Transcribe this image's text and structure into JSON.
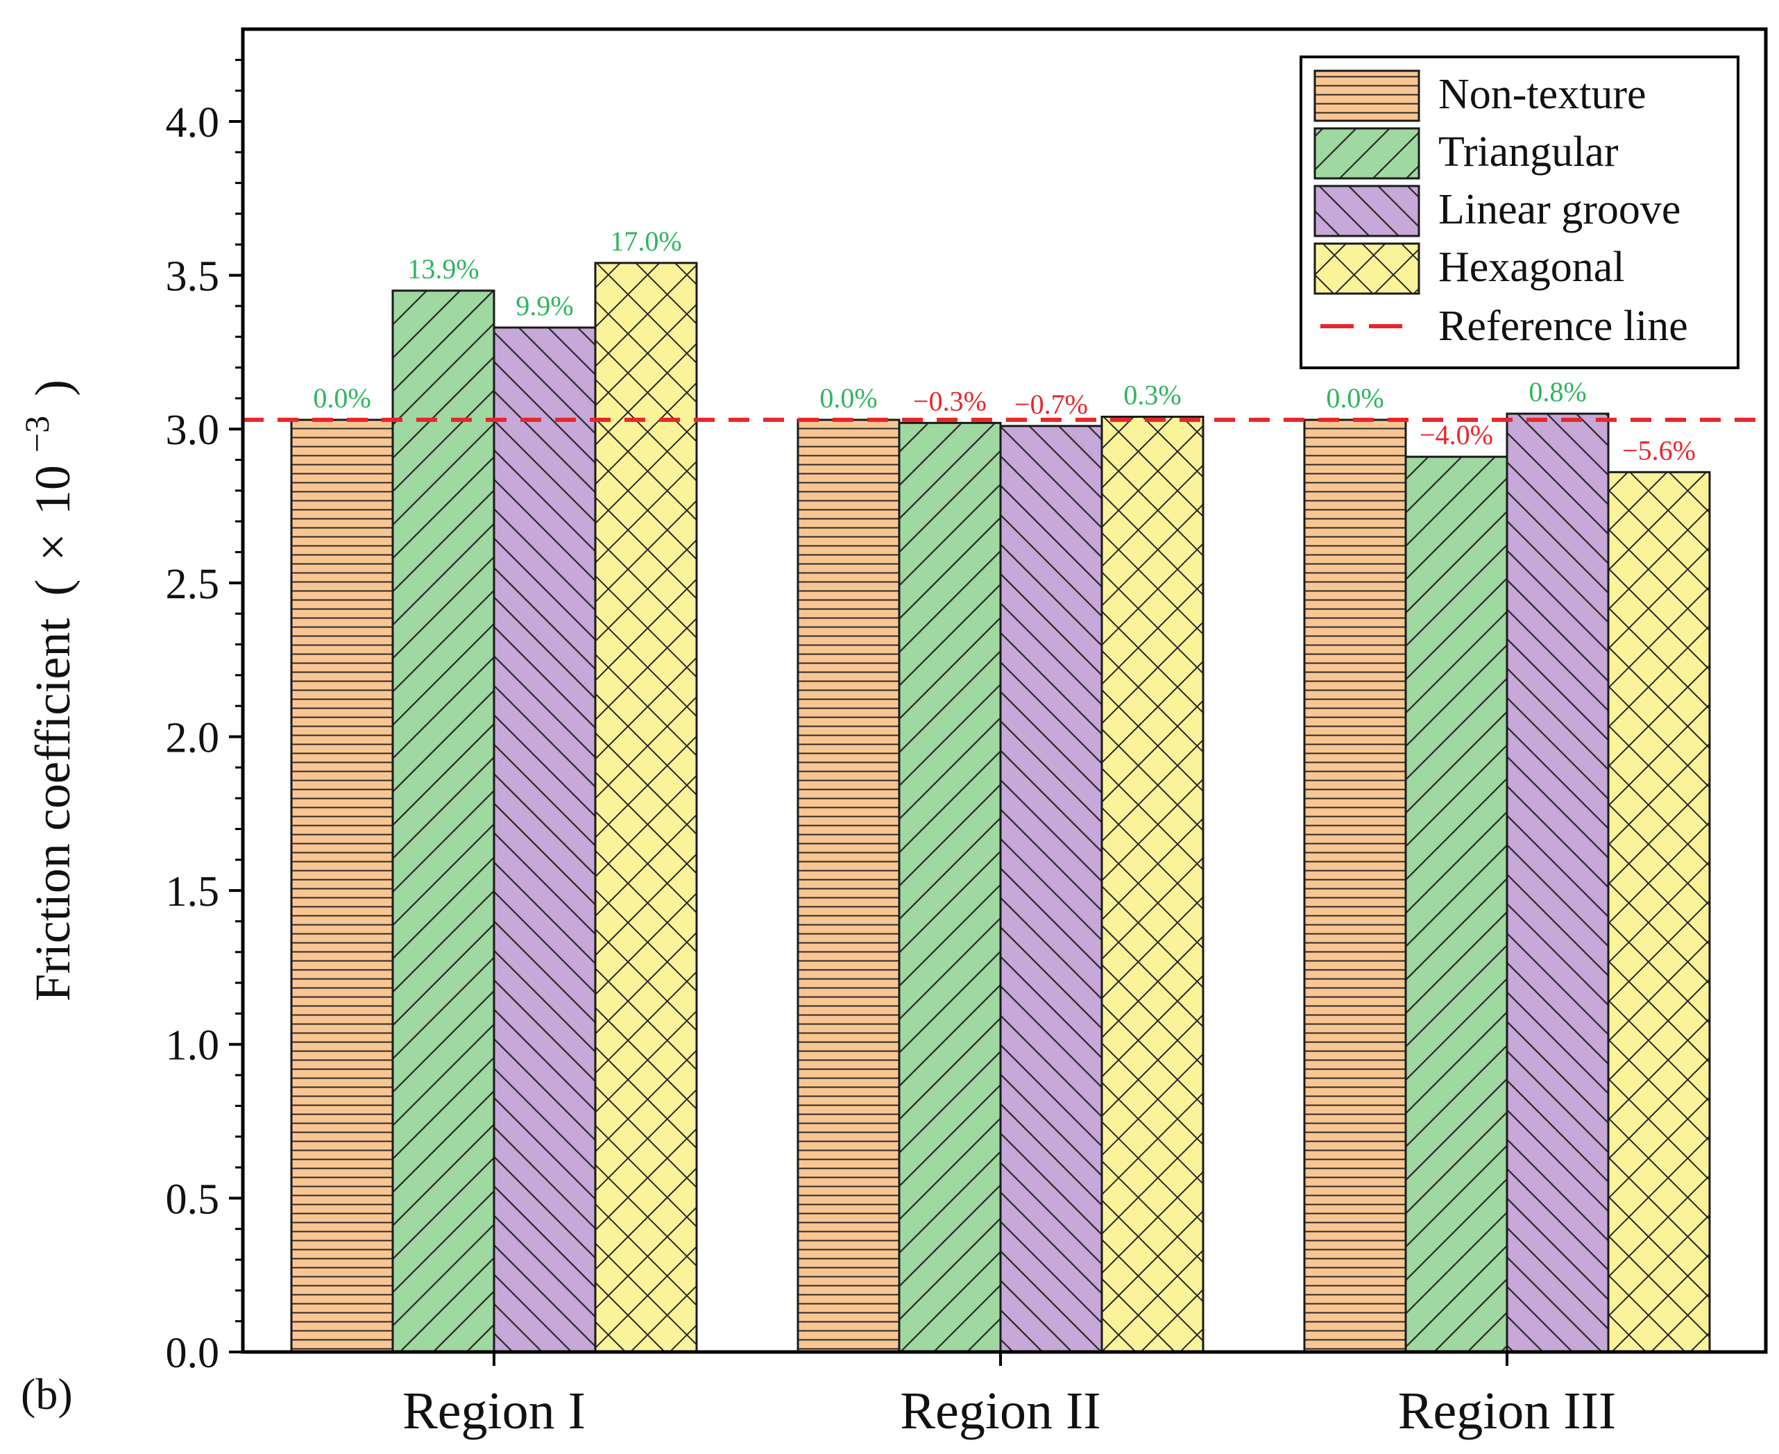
{
  "panel_label": "(b)",
  "colors": {
    "non_texture": "#f9c692",
    "triangular": "#9fd8a1",
    "linear_groove": "#c7a8d9",
    "hexagonal": "#fbf39a",
    "reference_line": "#e8262a",
    "positive_label": "#2db55d",
    "negative_label": "#e8262a",
    "hatch": "#2a2a2a"
  },
  "chart_data": {
    "type": "bar",
    "title": "",
    "xlabel": "",
    "ylabel": "Friction coefficient (×10⁻³)",
    "ylabel_parts": {
      "main": "Friction coefficient",
      "open": "(",
      "times": "×",
      "base": "10",
      "exp": "−3",
      "close": ")"
    },
    "ylim": [
      0,
      4.3
    ],
    "yticks": [
      "0.0",
      "0.5",
      "1.0",
      "1.5",
      "2.0",
      "2.5",
      "3.0",
      "3.5",
      "4.0"
    ],
    "ytick_values": [
      0,
      0.5,
      1.0,
      1.5,
      2.0,
      2.5,
      3.0,
      3.5,
      4.0
    ],
    "categories": [
      "Region I",
      "Region II",
      "Region III"
    ],
    "series": [
      {
        "name": "Non-texture",
        "key": "non_texture",
        "pattern": "horizontal",
        "values": [
          3.03,
          3.03,
          3.03
        ],
        "labels": [
          "0.0%",
          "0.0%",
          "0.0%"
        ],
        "label_sign": [
          "pos",
          "pos",
          "pos"
        ]
      },
      {
        "name": "Triangular",
        "key": "triangular",
        "pattern": "forward",
        "values": [
          3.45,
          3.02,
          2.91
        ],
        "labels": [
          "13.9%",
          "−0.3%",
          "−4.0%"
        ],
        "label_sign": [
          "pos",
          "neg",
          "neg"
        ]
      },
      {
        "name": "Linear groove",
        "key": "linear_groove",
        "pattern": "backward",
        "values": [
          3.33,
          3.01,
          3.05
        ],
        "labels": [
          "9.9%",
          "−0.7%",
          "0.8%"
        ],
        "label_sign": [
          "pos",
          "neg",
          "pos"
        ]
      },
      {
        "name": "Hexagonal",
        "key": "hexagonal",
        "pattern": "cross",
        "values": [
          3.54,
          3.04,
          2.86
        ],
        "labels": [
          "17.0%",
          "0.3%",
          "−5.6%"
        ],
        "label_sign": [
          "pos",
          "pos",
          "neg"
        ]
      }
    ],
    "reference_line": {
      "name": "Reference line",
      "value": 3.03
    },
    "legend_position": "top-right",
    "grid": false
  }
}
